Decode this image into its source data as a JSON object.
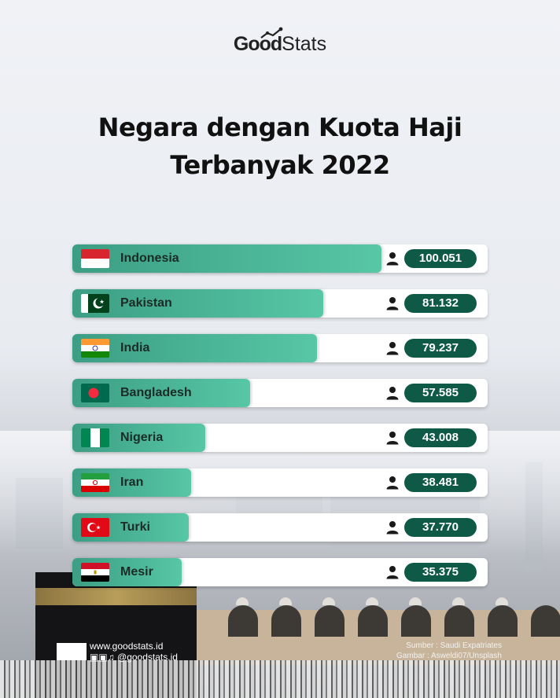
{
  "brand": {
    "logo_good": "Good",
    "logo_stats": "Stats"
  },
  "title_line1": "Negara dengan Kuota Haji",
  "title_line2": "Terbanyak 2022",
  "chart_data": {
    "type": "bar",
    "orientation": "horizontal",
    "title": "Negara dengan Kuota Haji Terbanyak 2022",
    "categories": [
      "Indonesia",
      "Pakistan",
      "India",
      "Bangladesh",
      "Nigeria",
      "Iran",
      "Turki",
      "Mesir"
    ],
    "values": [
      100051,
      81132,
      79237,
      57585,
      43008,
      38481,
      37770,
      35375
    ],
    "value_labels": [
      "100.051",
      "81.132",
      "79.237",
      "57.585",
      "43.008",
      "38.481",
      "37.770",
      "35.375"
    ],
    "flags": [
      "indonesia-flag",
      "pakistan-flag",
      "india-flag",
      "bangladesh-flag",
      "nigeria-flag",
      "iran-flag",
      "turkey-flag",
      "egypt-flag"
    ],
    "grid": false,
    "legend": "none"
  },
  "colors": {
    "bar_start": "#3c9e84",
    "bar_end": "#57c7a5",
    "pill": "#0f5a46",
    "track": "#ffffff"
  },
  "footer": {
    "website": "www.goodstats.id",
    "social": "@goodstats.id",
    "social_icons": [
      "instagram-icon",
      "facebook-icon",
      "twitter-icon",
      "tiktok-icon"
    ],
    "source": "Sumber : Saudi Expatriates",
    "image_credit": "Gambar : Asweldi07/Unsplash"
  }
}
